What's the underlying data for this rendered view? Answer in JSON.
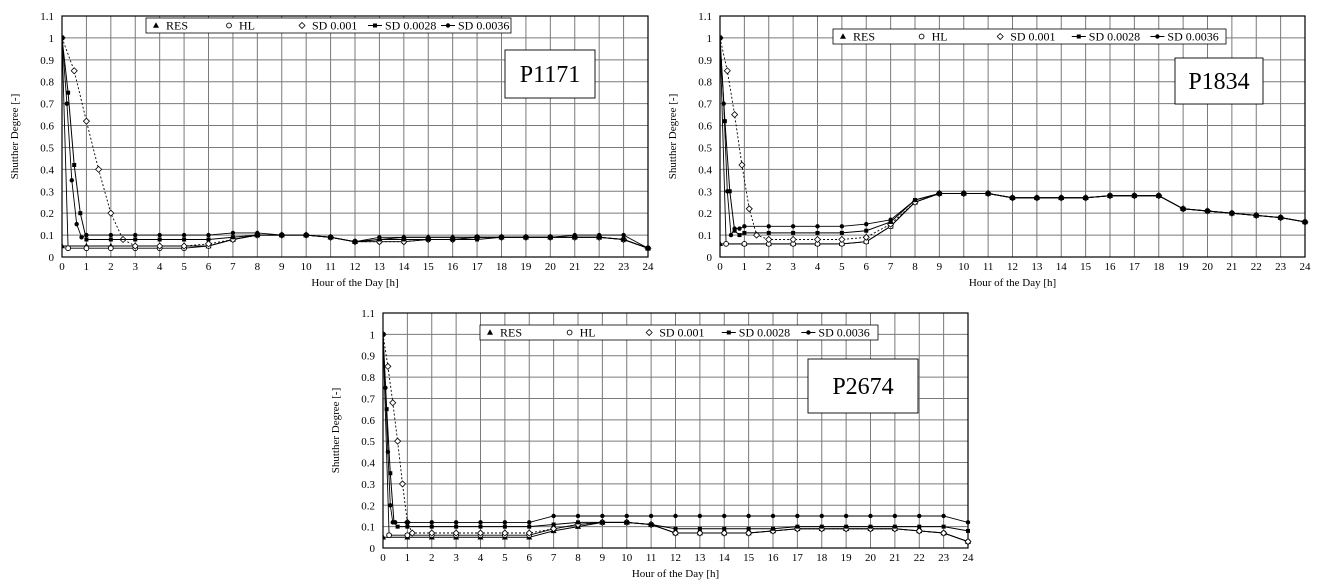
{
  "chart_data": [
    {
      "type": "line",
      "label": "P1171",
      "xlabel": "Hour of the Day [h]",
      "ylabel": "Shutther Degree [-]",
      "xlim": [
        0,
        24
      ],
      "ylim": [
        0,
        1.1
      ],
      "xticks": [
        "0",
        "1",
        "2",
        "3",
        "4",
        "5",
        "6",
        "7",
        "8",
        "9",
        "10",
        "11",
        "12",
        "13",
        "14",
        "15",
        "16",
        "17",
        "18",
        "19",
        "20",
        "21",
        "22",
        "23",
        "24"
      ],
      "yticks": [
        "0",
        "0.1",
        "0.2",
        "0.3",
        "0.4",
        "0.5",
        "0.6",
        "0.7",
        "0.8",
        "0.9",
        "1",
        "1.1"
      ],
      "legend_position": "top-center",
      "series": [
        {
          "name": "RES",
          "marker": "triangle",
          "x": [
            0,
            1,
            2,
            3,
            4,
            5,
            6,
            7,
            8,
            9,
            10,
            11,
            12,
            13,
            14,
            15,
            16,
            17,
            18,
            19,
            20,
            21,
            22,
            23,
            24
          ],
          "y": [
            0.05,
            0.05,
            0.05,
            0.05,
            0.05,
            0.05,
            0.05,
            0.08,
            0.1,
            0.1,
            0.1,
            0.09,
            0.07,
            0.08,
            0.09,
            0.09,
            0.09,
            0.09,
            0.09,
            0.09,
            0.09,
            0.09,
            0.09,
            0.08,
            0.04
          ]
        },
        {
          "name": "HL",
          "marker": "circle-open",
          "x": [
            0,
            0.25,
            1,
            2,
            3,
            4,
            5,
            6,
            7,
            8,
            9,
            10,
            11,
            12,
            13,
            14,
            15,
            16,
            17,
            18,
            19,
            20,
            21,
            22,
            23,
            24
          ],
          "y": [
            1,
            0.04,
            0.04,
            0.04,
            0.04,
            0.04,
            0.04,
            0.05,
            0.08,
            0.1,
            0.1,
            0.1,
            0.09,
            0.07,
            0.07,
            0.07,
            0.08,
            0.08,
            0.09,
            0.09,
            0.09,
            0.09,
            0.09,
            0.09,
            0.08,
            0.04
          ]
        },
        {
          "name": "SD 0.001",
          "marker": "diamond-open",
          "x": [
            0,
            0.5,
            1,
            1.5,
            2,
            2.5,
            3,
            4,
            5,
            6,
            7,
            8,
            9,
            10,
            11,
            12,
            13,
            14,
            15,
            16,
            17,
            18,
            19,
            20,
            21,
            22,
            23,
            24
          ],
          "y": [
            1,
            0.85,
            0.62,
            0.4,
            0.2,
            0.08,
            0.05,
            0.05,
            0.05,
            0.06,
            0.08,
            0.1,
            0.1,
            0.1,
            0.09,
            0.07,
            0.07,
            0.07,
            0.08,
            0.08,
            0.09,
            0.09,
            0.09,
            0.09,
            0.09,
            0.09,
            0.08,
            0.04
          ]
        },
        {
          "name": "SD 0.0028",
          "marker": "square",
          "x": [
            0,
            0.25,
            0.5,
            0.75,
            1,
            2,
            3,
            4,
            5,
            6,
            7,
            8,
            9,
            10,
            11,
            12,
            13,
            14,
            15,
            16,
            17,
            18,
            19,
            20,
            21,
            22,
            23,
            24
          ],
          "y": [
            1,
            0.75,
            0.42,
            0.2,
            0.08,
            0.08,
            0.08,
            0.08,
            0.08,
            0.08,
            0.09,
            0.1,
            0.1,
            0.1,
            0.09,
            0.07,
            0.08,
            0.08,
            0.08,
            0.08,
            0.08,
            0.09,
            0.09,
            0.09,
            0.09,
            0.09,
            0.08,
            0.04
          ]
        },
        {
          "name": "SD 0.0036",
          "marker": "dot",
          "x": [
            0,
            0.2,
            0.4,
            0.6,
            0.8,
            1,
            2,
            3,
            4,
            5,
            6,
            7,
            8,
            9,
            10,
            11,
            12,
            13,
            14,
            15,
            16,
            17,
            18,
            19,
            20,
            21,
            22,
            23,
            24
          ],
          "y": [
            1,
            0.7,
            0.35,
            0.15,
            0.09,
            0.1,
            0.1,
            0.1,
            0.1,
            0.1,
            0.1,
            0.11,
            0.11,
            0.1,
            0.1,
            0.09,
            0.07,
            0.09,
            0.09,
            0.09,
            0.09,
            0.09,
            0.09,
            0.09,
            0.09,
            0.1,
            0.1,
            0.1,
            0.04
          ]
        }
      ]
    },
    {
      "type": "line",
      "label": "P1834",
      "xlabel": "Hour of the Day [h]",
      "ylabel": "Shutther Degree [-]",
      "xlim": [
        0,
        24
      ],
      "ylim": [
        0,
        1.1
      ],
      "xticks": [
        "0",
        "1",
        "2",
        "3",
        "4",
        "5",
        "6",
        "7",
        "8",
        "9",
        "10",
        "11",
        "12",
        "13",
        "14",
        "15",
        "16",
        "17",
        "18",
        "19",
        "20",
        "21",
        "22",
        "23",
        "24"
      ],
      "yticks": [
        "0",
        "0.1",
        "0.2",
        "0.3",
        "0.4",
        "0.5",
        "0.6",
        "0.7",
        "0.8",
        "0.9",
        "1",
        "1.1"
      ],
      "legend_position": "top-center",
      "series": [
        {
          "name": "RES",
          "marker": "triangle",
          "x": [
            0,
            1,
            2,
            3,
            4,
            5,
            6,
            7,
            8,
            9,
            10,
            11,
            12,
            13,
            14,
            15,
            16,
            17,
            18,
            19,
            20,
            21,
            22,
            23,
            24
          ],
          "y": [
            0.06,
            0.06,
            0.06,
            0.06,
            0.06,
            0.06,
            0.07,
            0.14,
            0.25,
            0.29,
            0.29,
            0.29,
            0.27,
            0.27,
            0.27,
            0.27,
            0.28,
            0.28,
            0.28,
            0.22,
            0.21,
            0.2,
            0.19,
            0.18,
            0.16
          ]
        },
        {
          "name": "HL",
          "marker": "circle-open",
          "x": [
            0,
            0.25,
            1,
            2,
            3,
            4,
            5,
            6,
            7,
            8,
            9,
            10,
            11,
            12,
            13,
            14,
            15,
            16,
            17,
            18,
            19,
            20,
            21,
            22,
            23,
            24
          ],
          "y": [
            1,
            0.06,
            0.06,
            0.06,
            0.06,
            0.06,
            0.06,
            0.07,
            0.14,
            0.25,
            0.29,
            0.29,
            0.29,
            0.27,
            0.27,
            0.27,
            0.27,
            0.28,
            0.28,
            0.28,
            0.22,
            0.21,
            0.2,
            0.19,
            0.18,
            0.16
          ]
        },
        {
          "name": "SD 0.001",
          "marker": "diamond-open",
          "x": [
            0,
            0.3,
            0.6,
            0.9,
            1.2,
            1.5,
            2,
            3,
            4,
            5,
            6,
            7,
            8,
            9,
            10,
            11,
            12,
            13,
            14,
            15,
            16,
            17,
            18,
            19,
            20,
            21,
            22,
            23,
            24
          ],
          "y": [
            1,
            0.85,
            0.65,
            0.42,
            0.22,
            0.1,
            0.08,
            0.08,
            0.08,
            0.08,
            0.09,
            0.15,
            0.25,
            0.29,
            0.29,
            0.29,
            0.27,
            0.27,
            0.27,
            0.27,
            0.28,
            0.28,
            0.28,
            0.22,
            0.21,
            0.2,
            0.19,
            0.18,
            0.16
          ]
        },
        {
          "name": "SD 0.0028",
          "marker": "square",
          "x": [
            0,
            0.2,
            0.4,
            0.6,
            0.8,
            1,
            2,
            3,
            4,
            5,
            6,
            7,
            8,
            9,
            10,
            11,
            12,
            13,
            14,
            15,
            16,
            17,
            18,
            19,
            20,
            21,
            22,
            23,
            24
          ],
          "y": [
            1,
            0.62,
            0.3,
            0.12,
            0.1,
            0.11,
            0.11,
            0.11,
            0.11,
            0.11,
            0.12,
            0.16,
            0.26,
            0.29,
            0.29,
            0.29,
            0.27,
            0.27,
            0.27,
            0.27,
            0.28,
            0.28,
            0.28,
            0.22,
            0.21,
            0.2,
            0.19,
            0.18,
            0.16
          ]
        },
        {
          "name": "SD 0.0036",
          "marker": "dot",
          "x": [
            0,
            0.15,
            0.3,
            0.45,
            0.6,
            0.8,
            1,
            2,
            3,
            4,
            5,
            6,
            7,
            8,
            9,
            10,
            11,
            12,
            13,
            14,
            15,
            16,
            17,
            18,
            19,
            20,
            21,
            22,
            23,
            24
          ],
          "y": [
            1,
            0.7,
            0.3,
            0.1,
            0.13,
            0.13,
            0.14,
            0.14,
            0.14,
            0.14,
            0.14,
            0.15,
            0.17,
            0.26,
            0.29,
            0.29,
            0.29,
            0.27,
            0.27,
            0.27,
            0.27,
            0.28,
            0.28,
            0.28,
            0.22,
            0.21,
            0.2,
            0.19,
            0.18,
            0.16
          ]
        }
      ]
    },
    {
      "type": "line",
      "label": "P2674",
      "xlabel": "Hour of the Day [h]",
      "ylabel": "Shutther Degree [-]",
      "xlim": [
        0,
        24
      ],
      "ylim": [
        0,
        1.1
      ],
      "xticks": [
        "0",
        "1",
        "2",
        "3",
        "4",
        "5",
        "6",
        "7",
        "8",
        "9",
        "10",
        "11",
        "12",
        "13",
        "14",
        "15",
        "16",
        "17",
        "18",
        "19",
        "20",
        "21",
        "22",
        "23",
        "24"
      ],
      "yticks": [
        "0",
        "0.1",
        "0.2",
        "0.3",
        "0.4",
        "0.5",
        "0.6",
        "0.7",
        "0.8",
        "0.9",
        "1",
        "1.1"
      ],
      "legend_position": "top-center",
      "series": [
        {
          "name": "RES",
          "marker": "triangle",
          "x": [
            0,
            1,
            2,
            3,
            4,
            5,
            6,
            7,
            8,
            9,
            10,
            11,
            12,
            13,
            14,
            15,
            16,
            17,
            18,
            19,
            20,
            21,
            22,
            23,
            24
          ],
          "y": [
            0.05,
            0.05,
            0.05,
            0.05,
            0.05,
            0.05,
            0.05,
            0.08,
            0.1,
            0.12,
            0.12,
            0.11,
            0.07,
            0.07,
            0.07,
            0.07,
            0.08,
            0.09,
            0.09,
            0.09,
            0.09,
            0.09,
            0.08,
            0.07,
            0.03
          ]
        },
        {
          "name": "HL",
          "marker": "circle-open",
          "x": [
            0,
            0.25,
            1,
            2,
            3,
            4,
            5,
            6,
            7,
            8,
            9,
            10,
            11,
            12,
            13,
            14,
            15,
            16,
            17,
            18,
            19,
            20,
            21,
            22,
            23,
            24
          ],
          "y": [
            1,
            0.06,
            0.06,
            0.06,
            0.06,
            0.06,
            0.06,
            0.06,
            0.09,
            0.11,
            0.12,
            0.12,
            0.11,
            0.07,
            0.07,
            0.07,
            0.07,
            0.08,
            0.09,
            0.09,
            0.09,
            0.09,
            0.09,
            0.08,
            0.07,
            0.03
          ]
        },
        {
          "name": "SD 0.001",
          "marker": "diamond-open",
          "x": [
            0,
            0.2,
            0.4,
            0.6,
            0.8,
            1,
            1.2,
            2,
            3,
            4,
            5,
            6,
            7,
            8,
            9,
            10,
            11,
            12,
            13,
            14,
            15,
            16,
            17,
            18,
            19,
            20,
            21,
            22,
            23,
            24
          ],
          "y": [
            1,
            0.85,
            0.68,
            0.5,
            0.3,
            0.12,
            0.07,
            0.07,
            0.07,
            0.07,
            0.07,
            0.07,
            0.09,
            0.11,
            0.12,
            0.12,
            0.11,
            0.07,
            0.07,
            0.07,
            0.07,
            0.08,
            0.09,
            0.09,
            0.09,
            0.09,
            0.09,
            0.08,
            0.07,
            0.03
          ]
        },
        {
          "name": "SD 0.0028",
          "marker": "square",
          "x": [
            0,
            0.15,
            0.3,
            0.45,
            0.6,
            1,
            2,
            3,
            4,
            5,
            6,
            7,
            8,
            9,
            10,
            11,
            12,
            13,
            14,
            15,
            16,
            17,
            18,
            19,
            20,
            21,
            22,
            23,
            24
          ],
          "y": [
            1,
            0.65,
            0.35,
            0.12,
            0.1,
            0.1,
            0.1,
            0.1,
            0.1,
            0.1,
            0.1,
            0.11,
            0.12,
            0.12,
            0.12,
            0.11,
            0.09,
            0.09,
            0.09,
            0.09,
            0.09,
            0.1,
            0.1,
            0.1,
            0.1,
            0.1,
            0.1,
            0.1,
            0.08
          ]
        },
        {
          "name": "SD 0.0036",
          "marker": "dot",
          "x": [
            0,
            0.1,
            0.2,
            0.3,
            0.4,
            0.5,
            1,
            2,
            3,
            4,
            5,
            6,
            7,
            8,
            9,
            10,
            11,
            12,
            13,
            14,
            15,
            16,
            17,
            18,
            19,
            20,
            21,
            22,
            23,
            24
          ],
          "y": [
            1,
            0.75,
            0.45,
            0.2,
            0.12,
            0.12,
            0.12,
            0.12,
            0.12,
            0.12,
            0.12,
            0.12,
            0.15,
            0.15,
            0.15,
            0.15,
            0.15,
            0.15,
            0.15,
            0.15,
            0.15,
            0.15,
            0.15,
            0.15,
            0.15,
            0.15,
            0.15,
            0.15,
            0.15,
            0.12
          ]
        }
      ]
    }
  ]
}
